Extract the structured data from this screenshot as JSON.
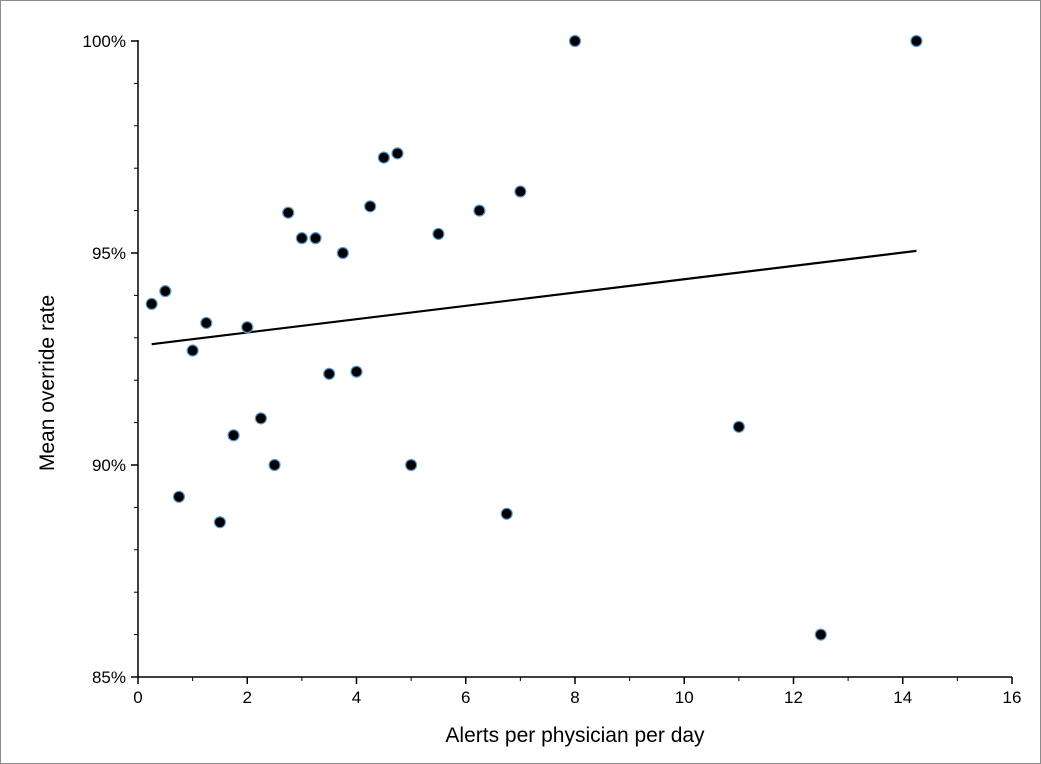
{
  "chart_data": {
    "type": "scatter",
    "title": "",
    "xlabel": "Alerts per physician per day",
    "ylabel": "Mean override rate",
    "xlim": [
      0,
      16
    ],
    "ylim": [
      85,
      100
    ],
    "x_ticks": [
      0,
      2,
      4,
      6,
      8,
      10,
      12,
      14,
      16
    ],
    "x_tick_labels": [
      "0",
      "2",
      "4",
      "6",
      "8",
      "10",
      "12",
      "14",
      "16"
    ],
    "y_ticks": [
      85,
      90,
      95,
      100
    ],
    "y_tick_labels": [
      "85%",
      "90%",
      "95%",
      "100%"
    ],
    "grid": false,
    "legend": "none",
    "series": [
      {
        "points": [
          {
            "x": 0.25,
            "y": 93.8
          },
          {
            "x": 0.5,
            "y": 94.1
          },
          {
            "x": 0.75,
            "y": 89.25
          },
          {
            "x": 1.0,
            "y": 92.7
          },
          {
            "x": 1.25,
            "y": 93.35
          },
          {
            "x": 1.5,
            "y": 88.65
          },
          {
            "x": 1.75,
            "y": 90.7
          },
          {
            "x": 2.0,
            "y": 93.25
          },
          {
            "x": 2.25,
            "y": 91.1
          },
          {
            "x": 2.5,
            "y": 90.0
          },
          {
            "x": 2.75,
            "y": 95.95
          },
          {
            "x": 3.0,
            "y": 95.35
          },
          {
            "x": 3.25,
            "y": 95.35
          },
          {
            "x": 3.5,
            "y": 92.15
          },
          {
            "x": 3.75,
            "y": 95.0
          },
          {
            "x": 4.0,
            "y": 92.2
          },
          {
            "x": 4.25,
            "y": 96.1
          },
          {
            "x": 4.5,
            "y": 97.25
          },
          {
            "x": 4.75,
            "y": 97.35
          },
          {
            "x": 5.0,
            "y": 90.0
          },
          {
            "x": 5.5,
            "y": 95.45
          },
          {
            "x": 6.25,
            "y": 96.0
          },
          {
            "x": 6.75,
            "y": 88.85
          },
          {
            "x": 7.0,
            "y": 96.45
          },
          {
            "x": 8.0,
            "y": 100.0
          },
          {
            "x": 11.0,
            "y": 90.9
          },
          {
            "x": 12.5,
            "y": 86.0
          },
          {
            "x": 14.25,
            "y": 100.0
          }
        ]
      }
    ],
    "trendline": {
      "type": "linear",
      "x": [
        0.25,
        14.25
      ],
      "y": [
        92.85,
        95.05
      ]
    },
    "colors": {
      "marker_fill": "#000000",
      "marker_edge": "#5b9bd5",
      "line": "#000000",
      "axis": "#000000"
    }
  }
}
